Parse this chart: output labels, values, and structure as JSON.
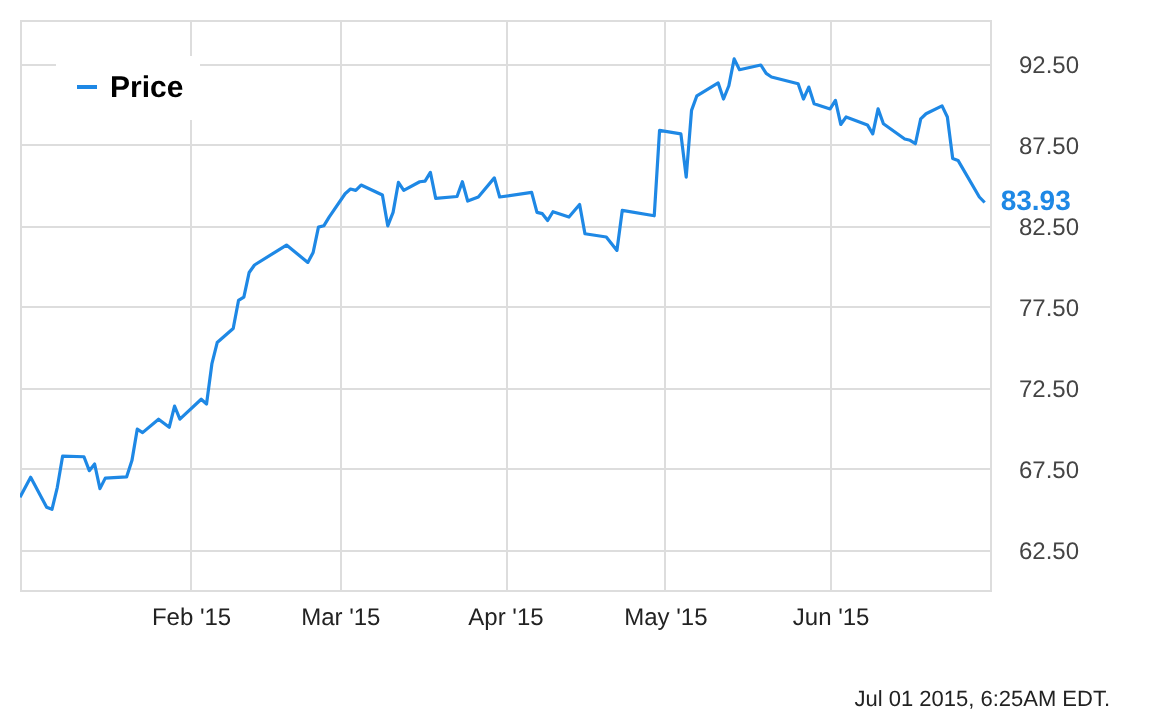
{
  "chart_data": {
    "type": "line",
    "x": [
      "2014-12-31",
      "2015-01-02",
      "2015-01-05",
      "2015-01-06",
      "2015-01-07",
      "2015-01-08",
      "2015-01-12",
      "2015-01-13",
      "2015-01-14",
      "2015-01-15",
      "2015-01-16",
      "2015-01-20",
      "2015-01-21",
      "2015-01-22",
      "2015-01-23",
      "2015-01-26",
      "2015-01-28",
      "2015-01-29",
      "2015-01-30",
      "2015-02-03",
      "2015-02-04",
      "2015-02-05",
      "2015-02-06",
      "2015-02-09",
      "2015-02-10",
      "2015-02-11",
      "2015-02-12",
      "2015-02-13",
      "2015-02-19",
      "2015-02-23",
      "2015-02-24",
      "2015-02-25",
      "2015-02-26",
      "2015-02-27",
      "2015-03-02",
      "2015-03-03",
      "2015-03-04",
      "2015-03-05",
      "2015-03-09",
      "2015-03-10",
      "2015-03-11",
      "2015-03-12",
      "2015-03-13",
      "2015-03-16",
      "2015-03-17",
      "2015-03-18",
      "2015-03-19",
      "2015-03-23",
      "2015-03-24",
      "2015-03-25",
      "2015-03-27",
      "2015-03-30",
      "2015-03-31",
      "2015-04-06",
      "2015-04-07",
      "2015-04-08",
      "2015-04-09",
      "2015-04-10",
      "2015-04-13",
      "2015-04-15",
      "2015-04-16",
      "2015-04-20",
      "2015-04-22",
      "2015-04-23",
      "2015-04-29",
      "2015-04-30",
      "2015-05-04",
      "2015-05-05",
      "2015-05-06",
      "2015-05-07",
      "2015-05-11",
      "2015-05-12",
      "2015-05-13",
      "2015-05-14",
      "2015-05-15",
      "2015-05-19",
      "2015-05-20",
      "2015-05-21",
      "2015-05-26",
      "2015-05-27",
      "2015-05-28",
      "2015-05-29",
      "2015-06-01",
      "2015-06-02",
      "2015-06-03",
      "2015-06-04",
      "2015-06-08",
      "2015-06-09",
      "2015-06-10",
      "2015-06-11",
      "2015-06-15",
      "2015-06-16",
      "2015-06-17",
      "2015-06-18",
      "2015-06-19",
      "2015-06-22",
      "2015-06-23",
      "2015-06-24",
      "2015-06-25",
      "2015-06-29",
      "2015-06-30"
    ],
    "series": [
      {
        "name": "Price",
        "color": "#1e88e5",
        "values": [
          65.73,
          66.96,
          65.11,
          64.98,
          66.34,
          68.27,
          68.23,
          67.37,
          67.78,
          66.26,
          66.91,
          66.98,
          67.99,
          69.93,
          69.72,
          70.55,
          70.05,
          71.36,
          70.55,
          71.78,
          71.49,
          73.96,
          75.28,
          76.15,
          77.88,
          78.09,
          79.61,
          80.07,
          81.3,
          80.23,
          80.84,
          82.41,
          82.49,
          83.03,
          84.47,
          84.76,
          84.68,
          85.01,
          84.39,
          82.49,
          83.32,
          85.17,
          84.68,
          85.21,
          85.25,
          85.79,
          84.18,
          84.3,
          85.21,
          84.02,
          84.27,
          85.45,
          84.27,
          84.55,
          83.32,
          83.24,
          82.82,
          83.36,
          83.03,
          83.81,
          82.0,
          81.8,
          80.97,
          83.44,
          83.11,
          88.38,
          88.17,
          85.5,
          89.62,
          90.52,
          91.31,
          90.32,
          91.14,
          92.8,
          92.13,
          92.42,
          91.9,
          91.68,
          91.26,
          90.32,
          91.06,
          90.03,
          89.71,
          90.24,
          88.75,
          89.21,
          88.72,
          88.17,
          89.71,
          88.79,
          87.85,
          87.77,
          87.56,
          89.09,
          89.41,
          89.9,
          89.21,
          86.65,
          86.53,
          84.27,
          83.93
        ],
        "value_labels": [
          null,
          null,
          null,
          null,
          null,
          null,
          null,
          null,
          null,
          null,
          null,
          null,
          null,
          null,
          null,
          null,
          null,
          null,
          null,
          null,
          null,
          null,
          null,
          null,
          null,
          null,
          null,
          null,
          null,
          null,
          null,
          null,
          null,
          null,
          null,
          null,
          null,
          null,
          null,
          null,
          null,
          null,
          null,
          null,
          null,
          null,
          null,
          null,
          null,
          null,
          null,
          null,
          null,
          null,
          null,
          null,
          null,
          null,
          null,
          null,
          null,
          null,
          null,
          null,
          null,
          null,
          null,
          null,
          null,
          null,
          null,
          null,
          null,
          null,
          null,
          null,
          null,
          null,
          null,
          null,
          null,
          null,
          null,
          null,
          null,
          null,
          null,
          null,
          null,
          null,
          null,
          null,
          null,
          null,
          null,
          null,
          null,
          null,
          null,
          null,
          "83.93"
        ]
      }
    ],
    "xlim": [
      "2014-12-31",
      "2015-07-01"
    ],
    "xticks": [
      {
        "value": "2015-02-01",
        "label": "Feb '15"
      },
      {
        "value": "2015-03-01",
        "label": "Mar '15"
      },
      {
        "value": "2015-04-01",
        "label": "Apr '15"
      },
      {
        "value": "2015-05-01",
        "label": "May '15"
      },
      {
        "value": "2015-06-01",
        "label": "Jun '15"
      }
    ],
    "ylim": [
      60,
      95.2
    ],
    "yticks": [
      {
        "value": 62.5,
        "label": "62.50"
      },
      {
        "value": 67.5,
        "label": "67.50"
      },
      {
        "value": 72.5,
        "label": "72.50"
      },
      {
        "value": 77.5,
        "label": "77.50"
      },
      {
        "value": 82.5,
        "label": "82.50"
      },
      {
        "value": 87.5,
        "label": "87.50"
      },
      {
        "value": 92.5,
        "label": "92.50"
      }
    ],
    "grid": true,
    "legend": "top left",
    "marker": "none",
    "line_style": "solid",
    "annotations": [
      "Jul 01 2015, 6:25AM EDT."
    ]
  }
}
